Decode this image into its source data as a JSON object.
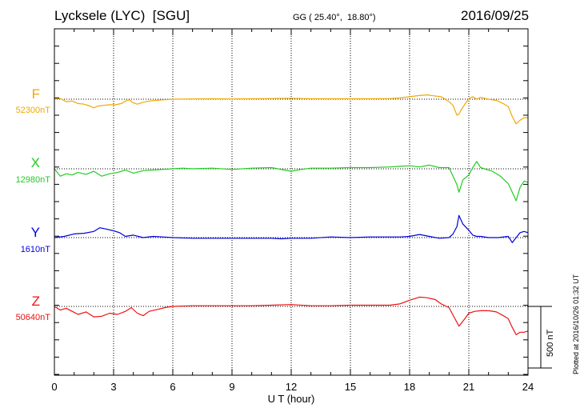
{
  "header": {
    "station": "Lycksele (LYC)  [SGU]",
    "coords": "GG ( 25.40°,  18.80°)",
    "date": "2016/09/25"
  },
  "scale_label": "500 nT",
  "plotted_note": "Plotted at 2016/10/26 01:32 UT",
  "chart_data": {
    "type": "line",
    "xlabel": "U T (hour)",
    "xlim": [
      0,
      24
    ],
    "x_ticks": [
      "0",
      "3",
      "6",
      "9",
      "12",
      "15",
      "18",
      "21",
      "24"
    ],
    "grid": "dotted vertical every 3 h",
    "series": [
      {
        "name": "F",
        "baseline": "52300nT",
        "color": "#f0a800",
        "x": [
          0,
          0.3,
          0.6,
          0.9,
          1.2,
          1.5,
          1.8,
          2.0,
          2.2,
          2.5,
          2.8,
          3.1,
          3.4,
          3.6,
          3.8,
          4.0,
          4.2,
          4.5,
          4.8,
          5.1,
          5.5,
          6,
          7,
          8,
          9,
          10,
          11,
          12,
          13,
          14,
          15,
          16,
          17,
          17.5,
          18,
          18.5,
          18.9,
          19.2,
          19.6,
          20.0,
          20.2,
          20.4,
          20.5,
          20.6,
          20.8,
          21.0,
          21.2,
          21.4,
          21.6,
          22.0,
          22.4,
          22.8,
          23.0,
          23.2,
          23.4,
          23.6,
          23.8,
          24
        ],
        "y": [
          0,
          5,
          -20,
          -15,
          -35,
          -40,
          -55,
          -70,
          -55,
          -50,
          -45,
          -45,
          -35,
          -15,
          -5,
          -30,
          -40,
          -25,
          -15,
          -10,
          -5,
          0,
          2,
          3,
          2,
          3,
          5,
          8,
          3,
          3,
          3,
          3,
          5,
          10,
          20,
          30,
          35,
          28,
          20,
          -20,
          -50,
          -130,
          -120,
          -90,
          -40,
          5,
          20,
          0,
          15,
          0,
          -10,
          -40,
          -60,
          -140,
          -200,
          -170,
          -150,
          -150
        ]
      },
      {
        "name": "X",
        "baseline": "12980nT",
        "color": "#22cc22",
        "x": [
          0,
          0.3,
          0.6,
          0.9,
          1.2,
          1.6,
          2.0,
          2.4,
          2.8,
          3.2,
          3.6,
          4.0,
          4.5,
          5.0,
          5.5,
          6,
          6.5,
          7,
          8,
          9,
          10,
          11,
          12,
          12.5,
          13,
          14,
          15,
          16,
          17,
          17.5,
          18,
          18.5,
          19,
          19.5,
          20.0,
          20.2,
          20.4,
          20.5,
          20.7,
          21.0,
          21.2,
          21.4,
          21.6,
          21.8,
          22.2,
          22.6,
          23.0,
          23.2,
          23.4,
          23.6,
          23.8,
          24
        ],
        "y": [
          0,
          -60,
          -40,
          -50,
          -30,
          -45,
          -20,
          -60,
          -40,
          -30,
          -10,
          -35,
          -15,
          -10,
          -5,
          0,
          5,
          0,
          5,
          -5,
          5,
          10,
          -20,
          -5,
          5,
          5,
          10,
          10,
          15,
          20,
          25,
          15,
          30,
          10,
          10,
          -60,
          -130,
          -190,
          -90,
          -50,
          10,
          60,
          10,
          0,
          -20,
          -60,
          -120,
          -190,
          -260,
          -150,
          -100,
          -110
        ]
      },
      {
        "name": "Y",
        "baseline": "1610nT",
        "color": "#0000dd",
        "x": [
          0,
          0.5,
          1,
          1.5,
          2.0,
          2.3,
          2.6,
          3.0,
          3.3,
          3.6,
          4.0,
          4.5,
          5,
          5.5,
          6,
          7,
          8,
          9,
          10,
          11,
          11.5,
          12,
          13,
          14,
          15,
          16,
          17,
          17.5,
          18,
          18.5,
          19,
          19.5,
          20.0,
          20.2,
          20.4,
          20.5,
          20.7,
          21.0,
          21.2,
          21.4,
          21.6,
          22.0,
          22.5,
          23.0,
          23.2,
          23.4,
          23.6,
          23.8,
          24
        ],
        "y": [
          0,
          10,
          30,
          35,
          50,
          80,
          70,
          55,
          40,
          10,
          20,
          0,
          10,
          5,
          0,
          -5,
          -5,
          -5,
          -5,
          -5,
          -10,
          -5,
          -5,
          5,
          0,
          5,
          5,
          5,
          10,
          25,
          10,
          -5,
          0,
          30,
          90,
          180,
          110,
          60,
          20,
          10,
          10,
          0,
          0,
          10,
          -40,
          0,
          40,
          50,
          40
        ]
      },
      {
        "name": "Z",
        "baseline": "50640nT",
        "color": "#ee1111",
        "x": [
          0,
          0.3,
          0.6,
          0.9,
          1.2,
          1.6,
          2.0,
          2.4,
          2.8,
          3.2,
          3.6,
          3.9,
          4.2,
          4.5,
          4.8,
          5.2,
          5.6,
          6,
          7,
          8,
          9,
          10,
          11,
          12,
          13,
          14,
          15,
          16,
          17,
          17.5,
          18,
          18.5,
          18.9,
          19.3,
          19.6,
          20.0,
          20.3,
          20.5,
          20.6,
          20.8,
          21.0,
          21.3,
          21.6,
          22.0,
          22.4,
          22.8,
          23.0,
          23.2,
          23.4,
          23.6,
          23.8,
          24
        ],
        "y": [
          0,
          -30,
          -15,
          -40,
          -65,
          -45,
          -85,
          -80,
          -55,
          -65,
          -40,
          -10,
          -55,
          -75,
          -40,
          -25,
          -10,
          0,
          5,
          5,
          5,
          5,
          10,
          15,
          5,
          5,
          10,
          10,
          10,
          20,
          50,
          75,
          70,
          55,
          20,
          -10,
          -100,
          -160,
          -140,
          -100,
          -55,
          -40,
          -35,
          -35,
          -45,
          -80,
          -100,
          -170,
          -230,
          -210,
          -210,
          -200
        ]
      }
    ]
  }
}
